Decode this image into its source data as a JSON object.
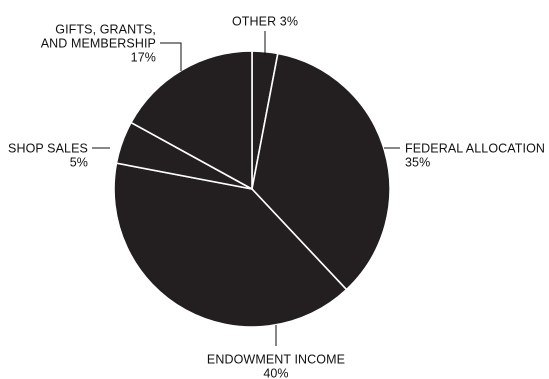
{
  "chart_data": {
    "type": "pie",
    "title": "",
    "unit": "%",
    "slices": [
      {
        "name": "OTHER",
        "label_lines": [
          "OTHER 3%"
        ],
        "value": 3
      },
      {
        "name": "FEDERAL ALLOCATION",
        "label_lines": [
          "FEDERAL ALLOCATION",
          "35%"
        ],
        "value": 35
      },
      {
        "name": "ENDOWMENT INCOME",
        "label_lines": [
          "ENDOWMENT INCOME",
          "40%"
        ],
        "value": 40
      },
      {
        "name": "SHOP SALES",
        "label_lines": [
          "SHOP SALES",
          "5%"
        ],
        "value": 5
      },
      {
        "name": "GIFTS, GRANTS, AND MEMBERSHIP",
        "label_lines": [
          "GIFTS, GRANTS,",
          "AND MEMBERSHIP",
          "17%"
        ],
        "value": 17
      }
    ],
    "start_angle": "12 o'clock",
    "direction": "clockwise",
    "colors": {
      "slice_fill": "#231f20",
      "slice_edge": "#ffffff",
      "text": "#111111",
      "leader_line": "#111111"
    }
  }
}
